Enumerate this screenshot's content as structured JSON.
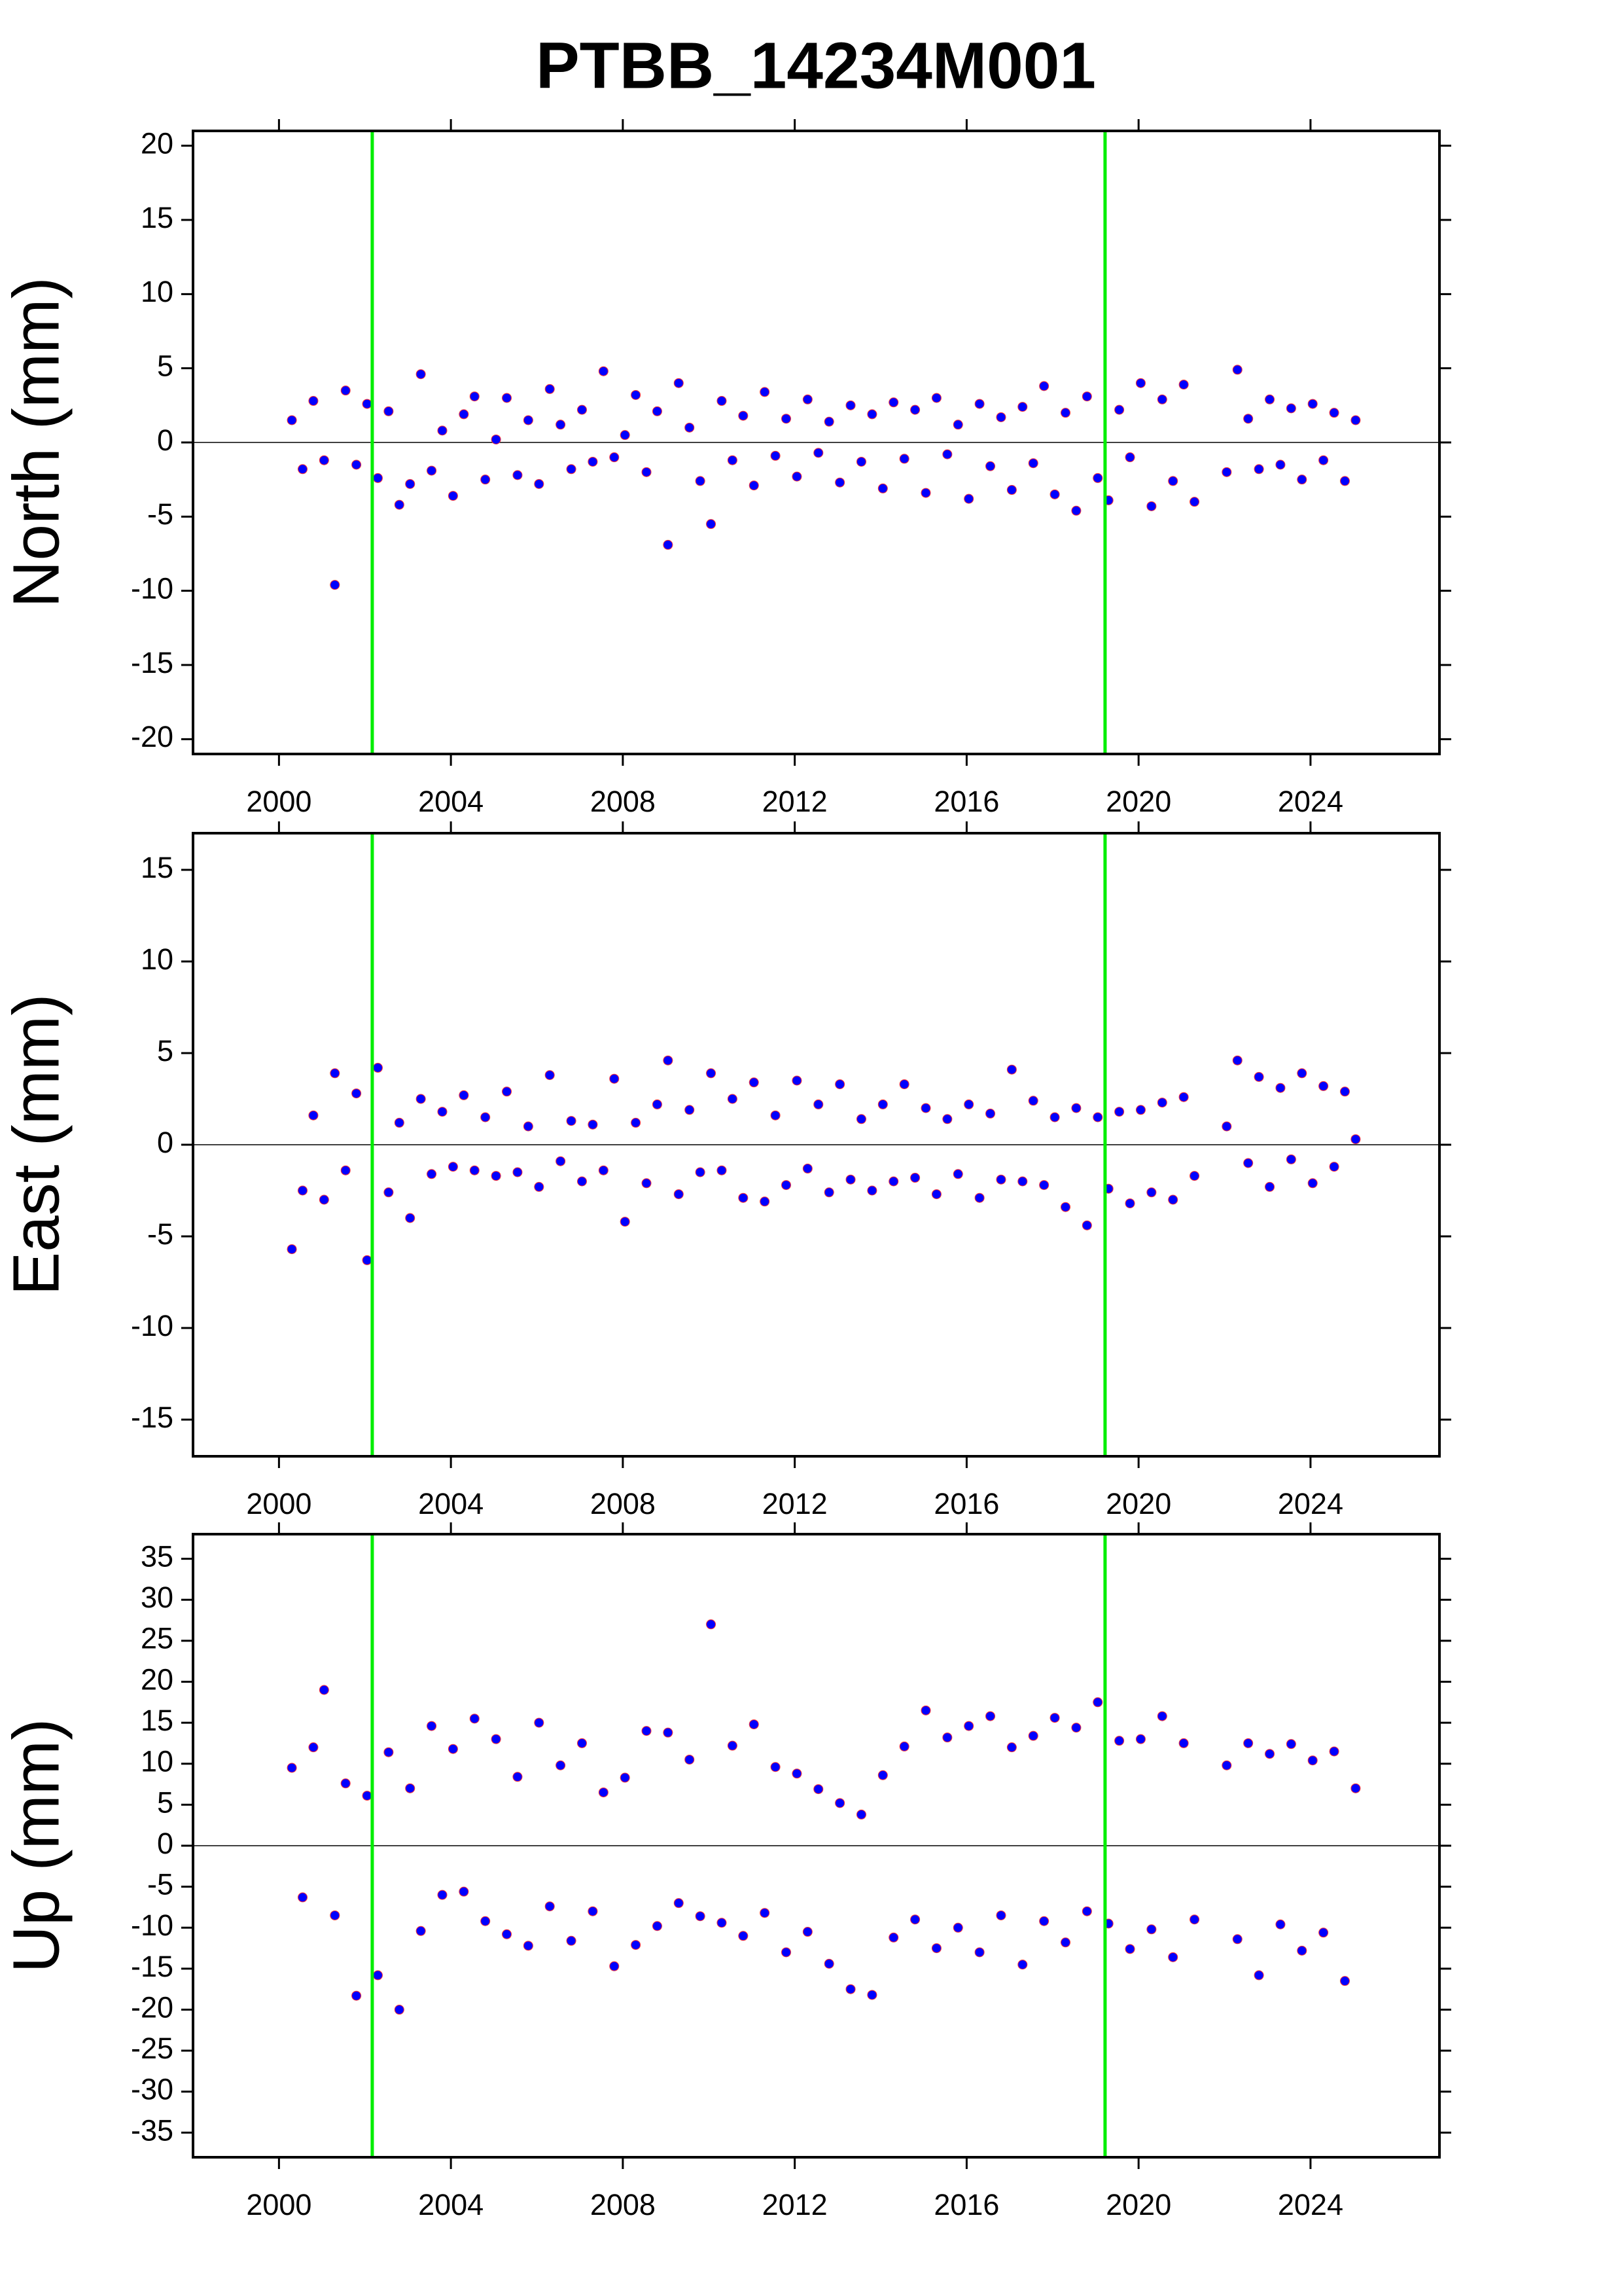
{
  "title": "PTBB_14234M001",
  "chart_data": [
    {
      "type": "scatter",
      "ylabel": "North (mm)",
      "x": [
        2000.3,
        2000.55,
        2000.8,
        2001.05,
        2001.3,
        2001.55,
        2001.8,
        2002.05,
        2002.3,
        2002.55,
        2002.8,
        2003.05,
        2003.3,
        2003.55,
        2003.8,
        2004.05,
        2004.3,
        2004.55,
        2004.8,
        2005.05,
        2005.3,
        2005.55,
        2005.8,
        2006.05,
        2006.3,
        2006.55,
        2006.8,
        2007.05,
        2007.3,
        2007.55,
        2007.8,
        2008.05,
        2008.3,
        2008.55,
        2008.8,
        2009.05,
        2009.3,
        2009.55,
        2009.8,
        2010.05,
        2010.3,
        2010.55,
        2010.8,
        2011.05,
        2011.3,
        2011.55,
        2011.8,
        2012.05,
        2012.3,
        2012.55,
        2012.8,
        2013.05,
        2013.3,
        2013.55,
        2013.8,
        2014.05,
        2014.3,
        2014.55,
        2014.8,
        2015.05,
        2015.3,
        2015.55,
        2015.8,
        2016.05,
        2016.3,
        2016.55,
        2016.8,
        2017.05,
        2017.3,
        2017.55,
        2017.8,
        2018.05,
        2018.3,
        2018.55,
        2018.8,
        2019.05,
        2019.3,
        2019.55,
        2019.8,
        2020.05,
        2020.3,
        2020.55,
        2020.8,
        2021.05,
        2021.3,
        2022.05,
        2022.3,
        2022.55,
        2022.8,
        2023.05,
        2023.3,
        2023.55,
        2023.8,
        2024.05,
        2024.3,
        2024.55,
        2024.8,
        2025.05
      ],
      "series": [
        {
          "color": "#0000ff",
          "values": [
            1.5,
            -1.8,
            2.8,
            -1.2,
            -9.6,
            3.5,
            -1.5,
            2.6,
            -2.4,
            2.1,
            -4.2,
            -2.8,
            4.6,
            -1.9,
            0.8,
            -3.6,
            1.9,
            3.1,
            -2.5,
            0.2,
            3.0,
            -2.2,
            1.5,
            -2.8,
            3.6,
            1.2,
            -1.8,
            2.2,
            -1.3,
            4.8,
            -1.0,
            0.5,
            3.2,
            -2.0,
            2.1,
            -6.9,
            4.0,
            1.0,
            -2.6,
            -5.5,
            2.8,
            -1.2,
            1.8,
            -2.9,
            3.4,
            -0.9,
            1.6,
            -2.3,
            2.9,
            -0.7,
            1.4,
            -2.7,
            2.5,
            -1.3,
            1.9,
            -3.1,
            2.7,
            -1.1,
            2.2,
            -3.4,
            3.0,
            -0.8,
            1.2,
            -3.8,
            2.6,
            -1.6,
            1.7,
            -3.2,
            2.4,
            -1.4,
            3.8,
            -3.5,
            2.0,
            -4.6,
            3.1,
            -2.4,
            -3.9,
            2.2,
            -1.0,
            4.0,
            -4.3,
            2.9,
            -2.6,
            3.9,
            -4.0,
            -2.0,
            4.9,
            1.6,
            -1.8,
            2.9,
            -1.5,
            2.3,
            -2.5,
            2.6,
            -1.2,
            2.0,
            -2.6,
            1.5
          ]
        }
      ],
      "xlim": [
        1998,
        2027
      ],
      "ylim": [
        -21,
        21
      ],
      "xticks": [
        2000,
        2004,
        2008,
        2012,
        2016,
        2020,
        2024
      ],
      "yticks": [
        -20,
        -15,
        -10,
        -5,
        0,
        5,
        10,
        15,
        20
      ],
      "breaks": [
        2002.17,
        2019.22
      ],
      "break_color": "#00ee00"
    },
    {
      "type": "scatter",
      "ylabel": "East (mm)",
      "x": [
        2000.3,
        2000.55,
        2000.8,
        2001.05,
        2001.3,
        2001.55,
        2001.8,
        2002.05,
        2002.3,
        2002.55,
        2002.8,
        2003.05,
        2003.3,
        2003.55,
        2003.8,
        2004.05,
        2004.3,
        2004.55,
        2004.8,
        2005.05,
        2005.3,
        2005.55,
        2005.8,
        2006.05,
        2006.3,
        2006.55,
        2006.8,
        2007.05,
        2007.3,
        2007.55,
        2007.8,
        2008.05,
        2008.3,
        2008.55,
        2008.8,
        2009.05,
        2009.3,
        2009.55,
        2009.8,
        2010.05,
        2010.3,
        2010.55,
        2010.8,
        2011.05,
        2011.3,
        2011.55,
        2011.8,
        2012.05,
        2012.3,
        2012.55,
        2012.8,
        2013.05,
        2013.3,
        2013.55,
        2013.8,
        2014.05,
        2014.3,
        2014.55,
        2014.8,
        2015.05,
        2015.3,
        2015.55,
        2015.8,
        2016.05,
        2016.3,
        2016.55,
        2016.8,
        2017.05,
        2017.3,
        2017.55,
        2017.8,
        2018.05,
        2018.3,
        2018.55,
        2018.8,
        2019.05,
        2019.3,
        2019.55,
        2019.8,
        2020.05,
        2020.3,
        2020.55,
        2020.8,
        2021.05,
        2021.3,
        2022.05,
        2022.3,
        2022.55,
        2022.8,
        2023.05,
        2023.3,
        2023.55,
        2023.8,
        2024.05,
        2024.3,
        2024.55,
        2024.8,
        2025.05
      ],
      "series": [
        {
          "color": "#0000ff",
          "values": [
            -5.7,
            -2.5,
            1.6,
            -3.0,
            3.9,
            -1.4,
            2.8,
            -6.3,
            4.2,
            -2.6,
            1.2,
            -4.0,
            2.5,
            -1.6,
            1.8,
            -1.2,
            2.7,
            -1.4,
            1.5,
            -1.7,
            2.9,
            -1.5,
            1.0,
            -2.3,
            3.8,
            -0.9,
            1.3,
            -2.0,
            1.1,
            -1.4,
            3.6,
            -4.2,
            1.2,
            -2.1,
            2.2,
            4.6,
            -2.7,
            1.9,
            -1.5,
            3.9,
            -1.4,
            2.5,
            -2.9,
            3.4,
            -3.1,
            1.6,
            -2.2,
            3.5,
            -1.3,
            2.2,
            -2.6,
            3.3,
            -1.9,
            1.4,
            -2.5,
            2.2,
            -2.0,
            3.3,
            -1.8,
            2.0,
            -2.7,
            1.4,
            -1.6,
            2.2,
            -2.9,
            1.7,
            -1.9,
            4.1,
            -2.0,
            2.4,
            -2.2,
            1.5,
            -3.4,
            2.0,
            -4.4,
            1.5,
            -2.4,
            1.8,
            -3.2,
            1.9,
            -2.6,
            2.3,
            -3.0,
            2.6,
            -1.7,
            1.0,
            4.6,
            -1.0,
            3.7,
            -2.3,
            3.1,
            -0.8,
            3.9,
            -2.1,
            3.2,
            -1.2,
            2.9,
            0.3
          ]
        }
      ],
      "xlim": [
        1998,
        2027
      ],
      "ylim": [
        -17,
        17
      ],
      "xticks": [
        2000,
        2004,
        2008,
        2012,
        2016,
        2020,
        2024
      ],
      "yticks": [
        -15,
        -10,
        -5,
        0,
        5,
        10,
        15
      ],
      "breaks": [
        2002.17,
        2019.22
      ],
      "break_color": "#00ee00"
    },
    {
      "type": "scatter",
      "ylabel": "Up (mm)",
      "x": [
        2000.3,
        2000.55,
        2000.8,
        2001.05,
        2001.3,
        2001.55,
        2001.8,
        2002.05,
        2002.3,
        2002.55,
        2002.8,
        2003.05,
        2003.3,
        2003.55,
        2003.8,
        2004.05,
        2004.3,
        2004.55,
        2004.8,
        2005.05,
        2005.3,
        2005.55,
        2005.8,
        2006.05,
        2006.3,
        2006.55,
        2006.8,
        2007.05,
        2007.3,
        2007.55,
        2007.8,
        2008.05,
        2008.3,
        2008.55,
        2008.8,
        2009.05,
        2009.3,
        2009.55,
        2009.8,
        2010.05,
        2010.3,
        2010.55,
        2010.8,
        2011.05,
        2011.3,
        2011.55,
        2011.8,
        2012.05,
        2012.3,
        2012.55,
        2012.8,
        2013.05,
        2013.3,
        2013.55,
        2013.8,
        2014.05,
        2014.3,
        2014.55,
        2014.8,
        2015.05,
        2015.3,
        2015.55,
        2015.8,
        2016.05,
        2016.3,
        2016.55,
        2016.8,
        2017.05,
        2017.3,
        2017.55,
        2017.8,
        2018.05,
        2018.3,
        2018.55,
        2018.8,
        2019.05,
        2019.3,
        2019.55,
        2019.8,
        2020.05,
        2020.3,
        2020.55,
        2020.8,
        2021.05,
        2021.3,
        2022.05,
        2022.3,
        2022.55,
        2022.8,
        2023.05,
        2023.3,
        2023.55,
        2023.8,
        2024.05,
        2024.3,
        2024.55,
        2024.8,
        2025.05
      ],
      "series": [
        {
          "color": "#0000ff",
          "values": [
            9.5,
            -6.3,
            12.0,
            19.0,
            -8.5,
            7.6,
            -18.3,
            6.1,
            -15.8,
            11.4,
            -20.0,
            7.0,
            -10.4,
            14.6,
            -6.0,
            11.8,
            -5.6,
            15.5,
            -9.2,
            13.0,
            -10.8,
            8.4,
            -12.2,
            15.0,
            -7.4,
            9.8,
            -11.6,
            12.5,
            -8.0,
            6.5,
            -14.7,
            8.3,
            -12.1,
            14.0,
            -9.8,
            13.8,
            -7.0,
            10.5,
            -8.6,
            27.0,
            -9.4,
            12.2,
            -11.0,
            14.8,
            -8.2,
            9.6,
            -13.0,
            8.8,
            -10.5,
            6.9,
            -14.4,
            5.2,
            -17.5,
            3.8,
            -18.2,
            8.6,
            -11.2,
            12.1,
            -9.0,
            16.5,
            -12.5,
            13.2,
            -10.0,
            14.6,
            -13.0,
            15.8,
            -8.5,
            12.0,
            -14.5,
            13.4,
            -9.2,
            15.6,
            -11.8,
            14.4,
            -8.0,
            17.5,
            -9.5,
            12.8,
            -12.6,
            13.0,
            -10.2,
            15.8,
            -13.6,
            12.5,
            -9.0,
            9.8,
            -11.4,
            12.5,
            -15.8,
            11.2,
            -9.6,
            12.4,
            -12.8,
            10.4,
            -10.6,
            11.5,
            -16.5,
            7.0
          ]
        }
      ],
      "xlim": [
        1998,
        2027
      ],
      "ylim": [
        -38,
        38
      ],
      "xticks": [
        2000,
        2004,
        2008,
        2012,
        2016,
        2020,
        2024
      ],
      "yticks": [
        -35,
        -30,
        -25,
        -20,
        -15,
        -10,
        -5,
        0,
        5,
        10,
        15,
        20,
        25,
        30,
        35
      ],
      "breaks": [
        2002.17,
        2019.22
      ],
      "break_color": "#00ee00"
    }
  ]
}
